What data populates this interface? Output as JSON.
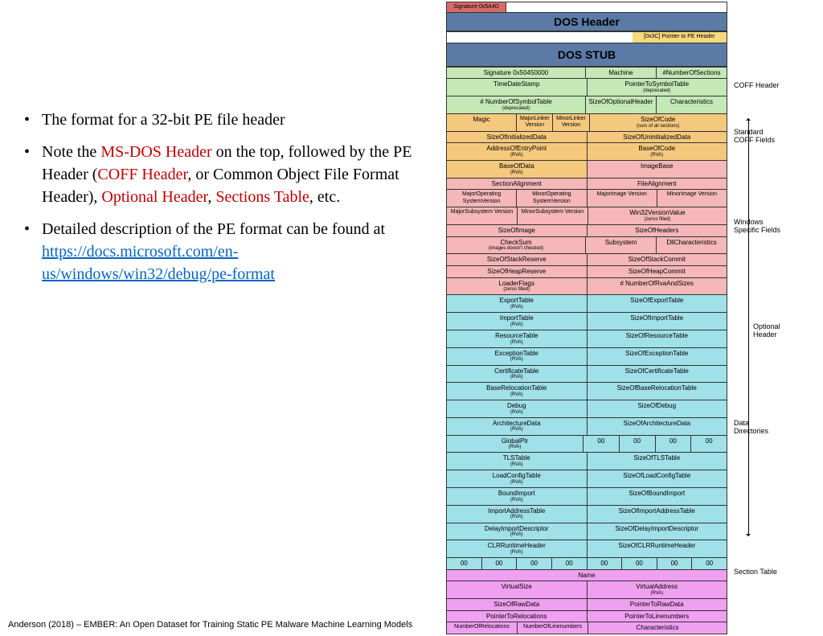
{
  "bullets": {
    "b1": "The format for a 32-bit PE file header",
    "b2_a": "Note the ",
    "b2_red1": "MS-DOS Header",
    "b2_b": " on the top, followed by the PE Header (",
    "b2_red2": "COFF Header",
    "b2_c": ", or Common Object File Format Header),  ",
    "b2_red3": "Optional Header",
    "b2_d": ", ",
    "b2_red4": "Sections Table",
    "b2_e": ", etc.",
    "b3_a": "Detailed description of the PE format can be found at ",
    "b3_link": "https://docs.microsoft.com/en-us/windows/win32/debug/pe-format"
  },
  "citation": "Anderson (2018) – EMBER: An Open Dataset for Training Static PE Malware Machine Learning Models",
  "colors": {
    "red_text": "#c00000",
    "link": "#0563c1",
    "dos": "#5b7ba6",
    "green": "#c5e8b7",
    "yellow": "#f5d97d",
    "orange": "#f5c97d",
    "pink": "#f5b7b7",
    "cyan": "#a0e0e8",
    "magenta": "#f0a0f0",
    "purple": "#c090e0",
    "sig_red": "#d96b6b"
  },
  "labels": {
    "sig": "Signature 0x5A4D",
    "dosh": "DOS Header",
    "peptr": "[0x3C] Pointer to PE Header",
    "dosstub": "DOS STUB",
    "coff": "COFF Header",
    "stdcoff": "Standard COFF Fields",
    "winspec": "Windows Specific Fields",
    "opthdr": "Optional Header",
    "datadir": "Data Directories",
    "sectbl": "Section Table"
  },
  "green_rows": [
    [
      {
        "t": "Signature 0x50450000",
        "w": 2
      },
      {
        "t": "Machine",
        "w": 1
      },
      {
        "t": "#NumberOfSections",
        "w": 1
      }
    ],
    [
      {
        "t": "TimeDateStamp",
        "w": 2
      },
      {
        "t": "PointerToSymbolTable",
        "s": "(deprecated)",
        "w": 2
      }
    ],
    [
      {
        "t": "# NumberOfSymbolTable",
        "s": "(deprecated)",
        "w": 2
      },
      {
        "t": "SizeOfOptionalHeader",
        "w": 1
      },
      {
        "t": "Characteristics",
        "w": 1
      }
    ]
  ],
  "orange_rows": [
    [
      {
        "t": "Magic",
        "w": 1
      },
      {
        "t": "MajorLinker Version",
        "w": 0.5,
        "sm": 1
      },
      {
        "t": "MinorLinker Version",
        "w": 0.5,
        "sm": 1
      },
      {
        "t": "SizeOfCode",
        "s": "(sum of all sections)",
        "w": 2
      }
    ],
    [
      {
        "t": "SizeOfInitializedData",
        "w": 2
      },
      {
        "t": "SizeOfUninitializedData",
        "w": 2
      }
    ],
    [
      {
        "t": "AddressOfEntryPoint",
        "s": "(RVA)",
        "w": 2
      },
      {
        "t": "BaseOfCode",
        "s": "(RVA)",
        "w": 2
      }
    ],
    [
      {
        "t": "BaseOfData",
        "s": "(RVA)",
        "w": 2
      },
      {
        "t": "ImageBase",
        "w": 2,
        "cls": "pink"
      }
    ]
  ],
  "pink_rows": [
    [
      {
        "t": "SectionAlignment",
        "w": 2
      },
      {
        "t": "FileAlignment",
        "w": 2
      }
    ],
    [
      {
        "t": "MajorOperating SystemVersion",
        "w": 1,
        "sm": 1
      },
      {
        "t": "MinorOperating SystemVersion",
        "w": 1,
        "sm": 1
      },
      {
        "t": "MajorImage Version",
        "w": 1,
        "sm": 1
      },
      {
        "t": "MinorImage Version",
        "w": 1,
        "sm": 1
      }
    ],
    [
      {
        "t": "MajorSubsystem Version",
        "w": 1,
        "sm": 1
      },
      {
        "t": "MinorSubsystem Version",
        "w": 1,
        "sm": 1
      },
      {
        "t": "Win32VersionValue",
        "s": "(zeros filled)",
        "w": 2
      }
    ],
    [
      {
        "t": "SizeOfImage",
        "w": 2
      },
      {
        "t": "SizeOfHeaders",
        "w": 2
      }
    ],
    [
      {
        "t": "CheckSum",
        "s": "(images doesn't checked)",
        "w": 2
      },
      {
        "t": "Subsystem",
        "w": 1
      },
      {
        "t": "DllCharacteristics",
        "w": 1
      }
    ],
    [
      {
        "t": "SizeOfStackReserve",
        "w": 2
      },
      {
        "t": "SizeOfStackCommit",
        "w": 2
      }
    ],
    [
      {
        "t": "SizeOfHeapReserve",
        "w": 2
      },
      {
        "t": "SizeOfHeapCommit",
        "w": 2
      }
    ],
    [
      {
        "t": "LoaderFlags",
        "s": "(zeros filled)",
        "w": 2
      },
      {
        "t": "# NumberOfRvaAndSizes",
        "w": 2
      }
    ]
  ],
  "cyan_rows": [
    [
      "ExportTable",
      "SizeOfExportTable"
    ],
    [
      "ImportTable",
      "SizeOfImportTable"
    ],
    [
      "ResourceTable",
      "SizeOfResourceTable"
    ],
    [
      "ExceptionTable",
      "SizeOfExceptionTable"
    ],
    [
      "CertificateTable",
      "SizeOfCertificateTable"
    ],
    [
      "BaseRelocationTable",
      "SizeOfBaseRelocationTable"
    ],
    [
      "Debug",
      "SizeOfDebug"
    ],
    [
      "ArchitectureData",
      "SizeOfArchitectureData"
    ]
  ],
  "cyan_gptr": [
    {
      "t": "GlobalPtr",
      "s": "(RVA)",
      "w": 2
    },
    {
      "t": "00",
      "w": 0.5
    },
    {
      "t": "00",
      "w": 0.5
    },
    {
      "t": "00",
      "w": 0.5
    },
    {
      "t": "00",
      "w": 0.5
    }
  ],
  "cyan_rows2": [
    [
      "TLSTable",
      "SizeOfTLSTable"
    ],
    [
      "LoadConfigTable",
      "SizeOfLoadConfigTable"
    ],
    [
      "BoundImport",
      "SizeOfBoundImport"
    ],
    [
      "ImportAddressTable",
      "SizeOfImportAddressTable"
    ],
    [
      "DelayImportDescriptor",
      "SizeOfDelayImportDescriptor"
    ],
    [
      "CLRRuntimeHeader",
      "SizeOfCLRRuntimeHeader"
    ]
  ],
  "cyan_zeros": [
    "00",
    "00",
    "00",
    "00",
    "00",
    "00",
    "00",
    "00"
  ],
  "magenta_rows": [
    [
      {
        "t": "Name",
        "w": 4
      }
    ],
    [
      {
        "t": "VirtualSize",
        "w": 2
      },
      {
        "t": "VirtualAddress",
        "s": "(RVA)",
        "w": 2
      }
    ],
    [
      {
        "t": "SizeOfRawData",
        "w": 2
      },
      {
        "t": "PointerToRawData",
        "w": 2
      }
    ],
    [
      {
        "t": "PointerToRelocations",
        "w": 2
      },
      {
        "t": "PointerToLinenumbers",
        "w": 2
      }
    ],
    [
      {
        "t": "NumberOfRelocations",
        "w": 1,
        "sm": 1
      },
      {
        "t": "NumberOfLinenumbers",
        "w": 1,
        "sm": 1
      },
      {
        "t": "Characteristics",
        "w": 2
      }
    ]
  ]
}
